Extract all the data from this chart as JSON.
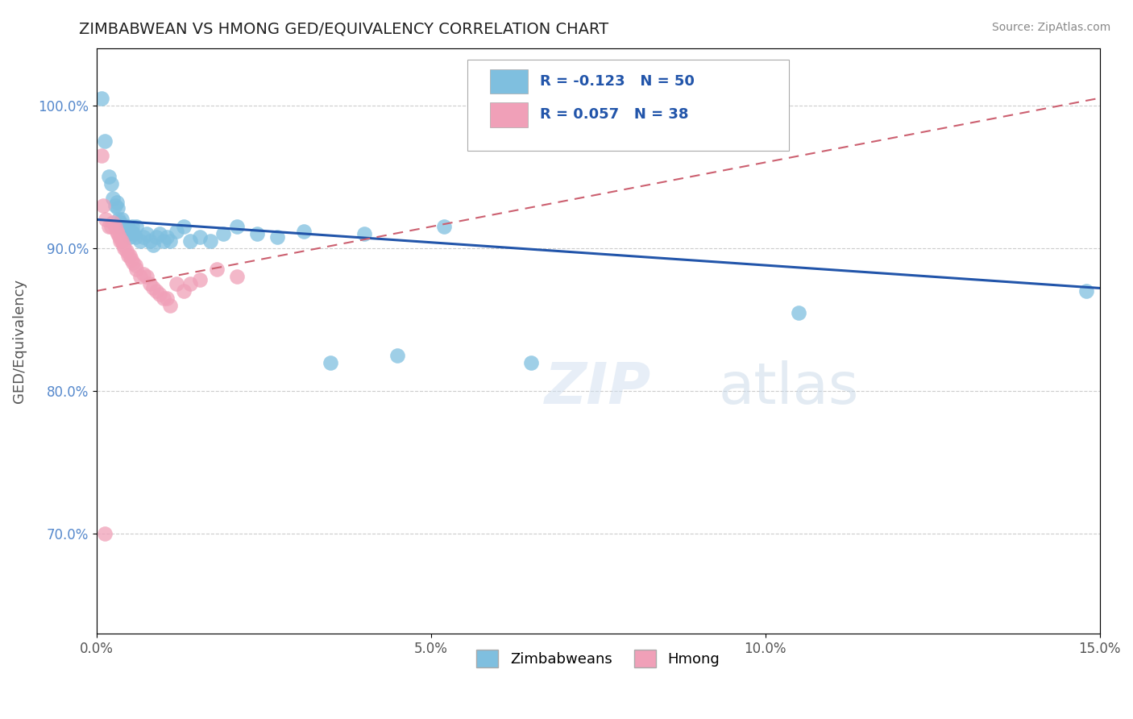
{
  "title": "ZIMBABWEAN VS HMONG GED/EQUIVALENCY CORRELATION CHART",
  "source": "Source: ZipAtlas.com",
  "ylabel": "GED/Equivalency",
  "xlim": [
    0.0,
    15.0
  ],
  "ylim": [
    63.0,
    104.0
  ],
  "xtick_vals": [
    0.0,
    5.0,
    10.0,
    15.0
  ],
  "ytick_vals": [
    70.0,
    80.0,
    90.0,
    100.0
  ],
  "blue_color": "#7fbfdf",
  "pink_color": "#f0a0b8",
  "blue_line_color": "#2255aa",
  "pink_line_color": "#cc6070",
  "grid_color": "#cccccc",
  "title_color": "#222222",
  "source_color": "#888888",
  "legend_label1": "Zimbabweans",
  "legend_label2": "Hmong",
  "blue_R": -0.123,
  "blue_N": 50,
  "pink_R": 0.057,
  "pink_N": 38,
  "blue_x": [
    0.08,
    0.12,
    0.18,
    0.22,
    0.25,
    0.28,
    0.3,
    0.32,
    0.33,
    0.35,
    0.36,
    0.38,
    0.4,
    0.42,
    0.44,
    0.46,
    0.48,
    0.5,
    0.52,
    0.54,
    0.56,
    0.58,
    0.6,
    0.65,
    0.7,
    0.75,
    0.8,
    0.85,
    0.9,
    0.95,
    1.0,
    1.05,
    1.1,
    1.2,
    1.3,
    1.4,
    1.55,
    1.7,
    1.9,
    2.1,
    2.4,
    2.7,
    3.1,
    3.5,
    4.0,
    4.5,
    5.2,
    6.5,
    10.5,
    14.8
  ],
  "blue_y": [
    100.5,
    97.5,
    95.0,
    94.5,
    93.5,
    93.0,
    93.2,
    92.8,
    92.0,
    91.5,
    91.8,
    92.0,
    91.5,
    91.5,
    91.2,
    91.5,
    91.0,
    90.8,
    91.2,
    91.5,
    91.0,
    90.8,
    91.5,
    90.5,
    90.8,
    91.0,
    90.5,
    90.2,
    90.8,
    91.0,
    90.5,
    90.8,
    90.5,
    91.2,
    91.5,
    90.5,
    90.8,
    90.5,
    91.0,
    91.5,
    91.0,
    90.8,
    91.2,
    82.0,
    91.0,
    82.5,
    91.5,
    82.0,
    85.5,
    87.0
  ],
  "pink_x": [
    0.08,
    0.1,
    0.14,
    0.18,
    0.22,
    0.25,
    0.28,
    0.3,
    0.32,
    0.34,
    0.36,
    0.38,
    0.4,
    0.42,
    0.45,
    0.48,
    0.5,
    0.52,
    0.55,
    0.58,
    0.6,
    0.65,
    0.7,
    0.75,
    0.8,
    0.85,
    0.9,
    0.95,
    1.0,
    1.05,
    1.1,
    1.2,
    1.3,
    1.4,
    1.55,
    1.8,
    2.1,
    0.12
  ],
  "pink_y": [
    96.5,
    93.0,
    92.0,
    91.5,
    91.5,
    91.8,
    91.5,
    91.2,
    91.0,
    90.8,
    90.5,
    90.5,
    90.2,
    90.0,
    89.8,
    89.5,
    89.5,
    89.2,
    89.0,
    88.8,
    88.5,
    88.0,
    88.2,
    88.0,
    87.5,
    87.2,
    87.0,
    86.8,
    86.5,
    86.5,
    86.0,
    87.5,
    87.0,
    87.5,
    87.8,
    88.5,
    88.0,
    70.0
  ],
  "blue_line_x": [
    0.0,
    15.0
  ],
  "blue_line_y": [
    92.0,
    87.2
  ],
  "pink_line_x": [
    0.0,
    15.0
  ],
  "pink_line_y": [
    87.0,
    100.5
  ]
}
